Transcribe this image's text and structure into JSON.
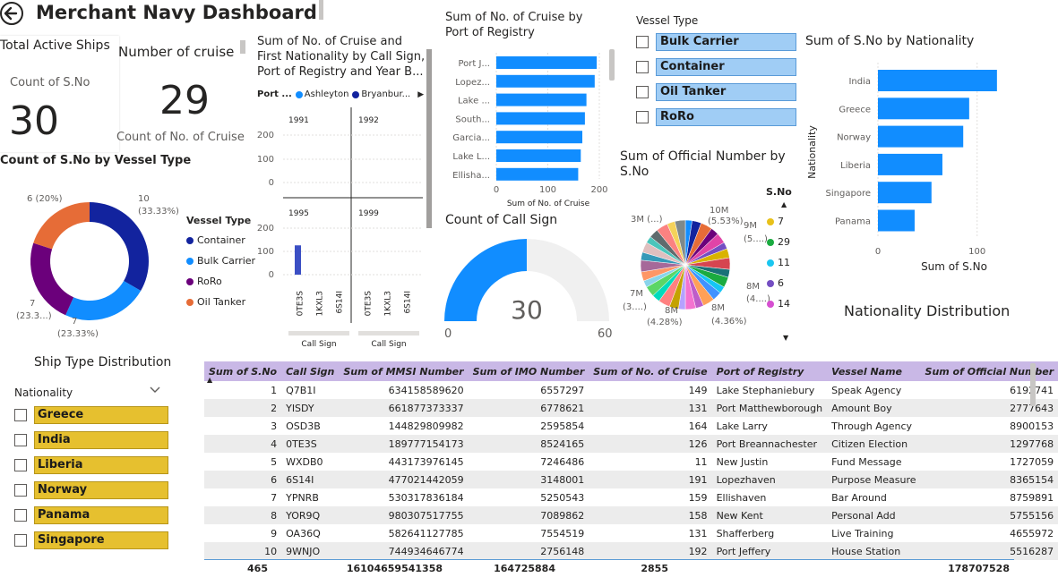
{
  "header": {
    "title": "Merchant Navy Dashboard"
  },
  "colors": {
    "blue": "#118dff",
    "navy": "#12239e",
    "purple": "#6b007b",
    "orange": "#e66c37",
    "gauge_bg": "#f0f0f0",
    "table_header": "#c9b8e6",
    "chip_blue": "#a0cdf5",
    "chip_yellow": "#e6c02f",
    "bar_navy": "#3b4fc4"
  },
  "cards": {
    "active_ships": {
      "title": "Total Active Ships",
      "label": "Count of S.No",
      "value": "30"
    },
    "cruise": {
      "title": "Number of cruise",
      "value": "29",
      "label": "Count of No. of Cruise"
    }
  },
  "donut": {
    "title": "Count of S.No by Vessel Type",
    "legend_title": "Vessel Type",
    "caption": "Ship Type Distribution",
    "chart_data": {
      "type": "pie",
      "categories": [
        "Container",
        "Bulk Carrier",
        "RoRo",
        "Oil Tanker"
      ],
      "values": [
        10,
        7,
        7,
        6
      ],
      "labels": [
        "10",
        "7",
        "7",
        "6 (20%)"
      ],
      "percent_labels": [
        "(33.33%)",
        "(23.33%)",
        "(23.3...)",
        ""
      ]
    }
  },
  "small_multiples": {
    "title_lines": [
      "Sum of No. of Cruise and",
      "First Nationality by Call Sign,",
      "Port of Registry and Year B..."
    ],
    "legend_label": "Port ...",
    "legend_items": [
      "Ashleyton",
      "Bryanbur..."
    ],
    "panels": [
      "1991",
      "1992",
      "1995",
      "1999"
    ],
    "y_ticks": [
      "200",
      "100",
      "0"
    ],
    "x_labels": [
      "0TE3S",
      "1KXL3",
      "6S14I"
    ],
    "x_axis_title": "Call Sign",
    "chart_data": {
      "type": "bar",
      "categories": [
        "0TE3S",
        "1KXL3",
        "6S14I"
      ],
      "series": [
        {
          "name": "1995",
          "values": [
            126,
            0,
            0
          ]
        }
      ],
      "ylim": [
        0,
        250
      ]
    }
  },
  "port_bar": {
    "title_lines": [
      "Sum of No. of Cruise by",
      "Port of Registry"
    ],
    "x_ticks": [
      "0",
      "100",
      "200"
    ],
    "x_axis_title": "Sum of No. of Cruise",
    "chart_data": {
      "type": "bar",
      "categories": [
        "Port J...",
        "Lopez...",
        "Lake ...",
        "South...",
        "Garcia...",
        "Lake L...",
        "Ellisha..."
      ],
      "values": [
        195,
        191,
        175,
        172,
        167,
        164,
        159
      ],
      "xlim": [
        0,
        200
      ]
    }
  },
  "vessel_slicer": {
    "title": "Vessel Type",
    "items": [
      "Bulk Carrier",
      "Container",
      "Oil Tanker",
      "RoRo"
    ]
  },
  "nationality_bar": {
    "title": "Sum of S.No by Nationality",
    "y_axis_title": "Nationality",
    "x_axis_title": "Sum of S.No",
    "x_ticks": [
      "0",
      "100"
    ],
    "caption": "Nationality Distribution",
    "chart_data": {
      "type": "bar",
      "categories": [
        "India",
        "Greece",
        "Norway",
        "Liberia",
        "Singapore",
        "Panama"
      ],
      "values": [
        120,
        92,
        86,
        65,
        54,
        37
      ],
      "xlim": [
        0,
        140
      ]
    }
  },
  "official_pie": {
    "title_lines": [
      "Sum of Official Number by",
      "S.No"
    ],
    "legend_title": "S.No",
    "legend_items": [
      "7",
      "29",
      "11",
      "6",
      "14"
    ],
    "legend_colors": [
      "#e8c11a",
      "#1aab40",
      "#1ac6f0",
      "#744ec2",
      "#d64fd1"
    ],
    "labels": {
      "top": "10M",
      "top_pct": "(5.53%)",
      "left_top": "3M (...)",
      "right_top": "9M",
      "right_top_pct": "(5....)",
      "right_mid": "8M",
      "right_mid_pct": "(4....)",
      "left_bottom": "7M",
      "left_bottom_pct": "(3....)",
      "bottom_left": "8M",
      "bottom_left_pct": "(4.28%)",
      "bottom_right": "8M",
      "bottom_right_pct": "(4.36%)"
    },
    "slice_colors": [
      "#118dff",
      "#12239e",
      "#e66c37",
      "#6b007b",
      "#e044a7",
      "#744ec2",
      "#d9b300",
      "#d64550",
      "#197278",
      "#1aab40",
      "#15c6f4",
      "#4092ff",
      "#ffa058",
      "#be5dc9",
      "#f472d0",
      "#b5a1ff",
      "#c4a200",
      "#ff8080",
      "#00dbbc",
      "#5bd667",
      "#8ad4eb",
      "#fe9666",
      "#a66999",
      "#3599b8",
      "#dfbfbf",
      "#4ac5bb",
      "#5f6b6d",
      "#fb8281",
      "#f4d25a",
      "#7f898a"
    ]
  },
  "gauge": {
    "title": "Count of Call Sign",
    "value": "30",
    "min": "0",
    "max": "60",
    "chart_data": {
      "type": "bar",
      "values": [
        30
      ],
      "ylim": [
        0,
        60
      ]
    }
  },
  "nationality_slicer": {
    "title": "Nationality",
    "items": [
      "Greece",
      "India",
      "Liberia",
      "Norway",
      "Panama",
      "Singapore"
    ]
  },
  "table": {
    "columns": [
      "Sum of S.No",
      "Call Sign",
      "Sum of MMSI Number",
      "Sum of IMO Number",
      "Sum of No. of Cruise",
      "Port of Registry",
      "Vessel Name",
      "Sum of Official Number"
    ],
    "rows": [
      [
        "1",
        "Q7B1I",
        "634158589620",
        "6557297",
        "149",
        "Lake Stephaniebury",
        "Speak Agency",
        "6192741"
      ],
      [
        "2",
        "YISDY",
        "661877373337",
        "6778621",
        "131",
        "Port Matthewborough",
        "Amount Boy",
        "2777643"
      ],
      [
        "3",
        "OSD3B",
        "144829809982",
        "2595854",
        "164",
        "Lake Larry",
        "Through Agency",
        "8900153"
      ],
      [
        "4",
        "0TE3S",
        "189777154173",
        "8524165",
        "126",
        "Port Breannachester",
        "Citizen Election",
        "1297768"
      ],
      [
        "5",
        "WXDB0",
        "443173976145",
        "7246486",
        "11",
        "New Justin",
        "Fund Message",
        "1727059"
      ],
      [
        "6",
        "6S14I",
        "477021442059",
        "3148001",
        "191",
        "Lopezhaven",
        "Purpose Measure",
        "8365154"
      ],
      [
        "7",
        "YPNRB",
        "530317836184",
        "5250543",
        "159",
        "Ellishaven",
        "Bar Around",
        "8759891"
      ],
      [
        "8",
        "YOR9Q",
        "980307517755",
        "7089862",
        "158",
        "New Kent",
        "Personal Add",
        "5755156"
      ],
      [
        "9",
        "OA36Q",
        "582641127785",
        "7554519",
        "131",
        "Shafferberg",
        "Live Training",
        "4655972"
      ],
      [
        "10",
        "9WNJO",
        "744934646774",
        "2756148",
        "192",
        "Port Jeffery",
        "House Station",
        "5516287"
      ]
    ],
    "totals": [
      "465",
      "",
      "16104659541358",
      "164725884",
      "2855",
      "",
      "",
      "178707528"
    ]
  }
}
